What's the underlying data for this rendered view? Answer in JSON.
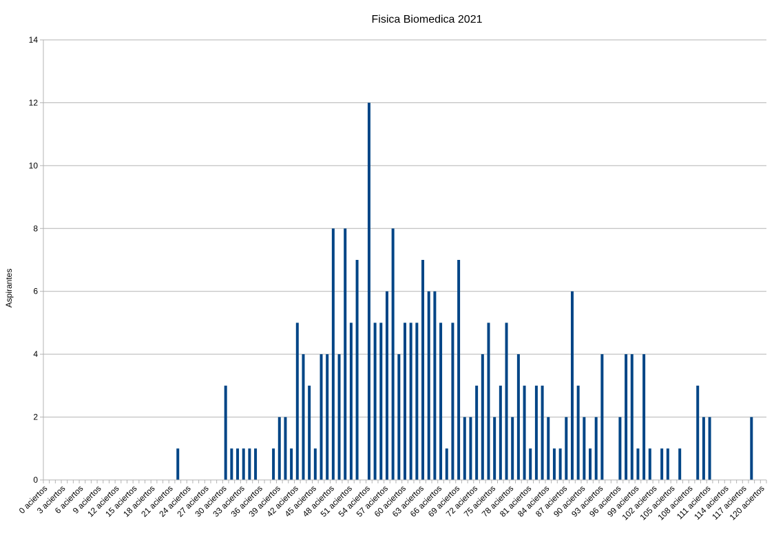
{
  "chart_data": {
    "type": "bar",
    "title": "Fisica Biomedica 2021",
    "xlabel": "",
    "ylabel": "Aspirantes",
    "ylim": [
      0,
      14
    ],
    "yticks": [
      0,
      2,
      4,
      6,
      8,
      10,
      12,
      14
    ],
    "grid": true,
    "legend": "none",
    "bar_color": "#004586",
    "grid_color": "#b3b3b3",
    "x_tick_suffix": " aciertos",
    "categories": [
      0,
      1,
      2,
      3,
      4,
      5,
      6,
      7,
      8,
      9,
      10,
      11,
      12,
      13,
      14,
      15,
      16,
      17,
      18,
      19,
      20,
      21,
      22,
      23,
      24,
      25,
      26,
      27,
      28,
      29,
      30,
      31,
      32,
      33,
      34,
      35,
      36,
      37,
      38,
      39,
      40,
      41,
      42,
      43,
      44,
      45,
      46,
      47,
      48,
      49,
      50,
      51,
      52,
      53,
      54,
      55,
      56,
      57,
      58,
      59,
      60,
      61,
      62,
      63,
      64,
      65,
      66,
      67,
      68,
      69,
      70,
      71,
      72,
      73,
      74,
      75,
      76,
      77,
      78,
      79,
      80,
      81,
      82,
      83,
      84,
      85,
      86,
      87,
      88,
      89,
      90,
      91,
      92,
      93,
      94,
      95,
      96,
      97,
      98,
      99,
      100,
      101,
      102,
      103,
      104,
      105,
      106,
      107,
      108,
      109,
      110,
      111,
      112,
      113,
      114,
      115,
      116,
      117,
      118,
      119,
      120
    ],
    "values": [
      0,
      0,
      0,
      0,
      0,
      0,
      0,
      0,
      0,
      0,
      0,
      0,
      0,
      0,
      0,
      0,
      0,
      0,
      0,
      0,
      0,
      0,
      1,
      0,
      0,
      0,
      0,
      0,
      0,
      0,
      3,
      1,
      1,
      1,
      1,
      1,
      0,
      0,
      1,
      2,
      2,
      1,
      5,
      4,
      3,
      1,
      4,
      4,
      8,
      4,
      8,
      5,
      7,
      0,
      12,
      5,
      5,
      6,
      8,
      4,
      5,
      5,
      5,
      7,
      6,
      6,
      5,
      1,
      5,
      7,
      2,
      2,
      3,
      4,
      5,
      2,
      3,
      5,
      2,
      4,
      3,
      1,
      3,
      3,
      2,
      1,
      1,
      2,
      6,
      3,
      2,
      1,
      2,
      4,
      0,
      0,
      2,
      4,
      4,
      1,
      4,
      1,
      0,
      1,
      1,
      0,
      1,
      0,
      0,
      3,
      2,
      2,
      0,
      0,
      0,
      0,
      0,
      0,
      2,
      0,
      0
    ],
    "labeled_ticks": [
      "0 aciertos",
      "3 aciertos",
      "6 aciertos",
      "9 aciertos",
      "12 aciertos",
      "15 aciertos",
      "18 aciertos",
      "21 aciertos",
      "24 aciertos",
      "27 aciertos",
      "30 aciertos",
      "33 aciertos",
      "36 aciertos",
      "39 aciertos",
      "42 aciertos",
      "45 aciertos",
      "48 aciertos",
      "51 aciertos",
      "54 aciertos",
      "57 aciertos",
      "60 aciertos",
      "63 aciertos",
      "66 aciertos",
      "69 aciertos",
      "72 aciertos",
      "75 aciertos",
      "78 aciertos",
      "81 aciertos",
      "84 aciertos",
      "87 aciertos",
      "90 aciertos",
      "93 aciertos",
      "96 aciertos",
      "99 aciertos",
      "102 aciertos",
      "105 aciertos",
      "108 aciertos",
      "111 aciertos",
      "114 aciertos",
      "117 aciertos",
      "120 aciertos"
    ]
  }
}
